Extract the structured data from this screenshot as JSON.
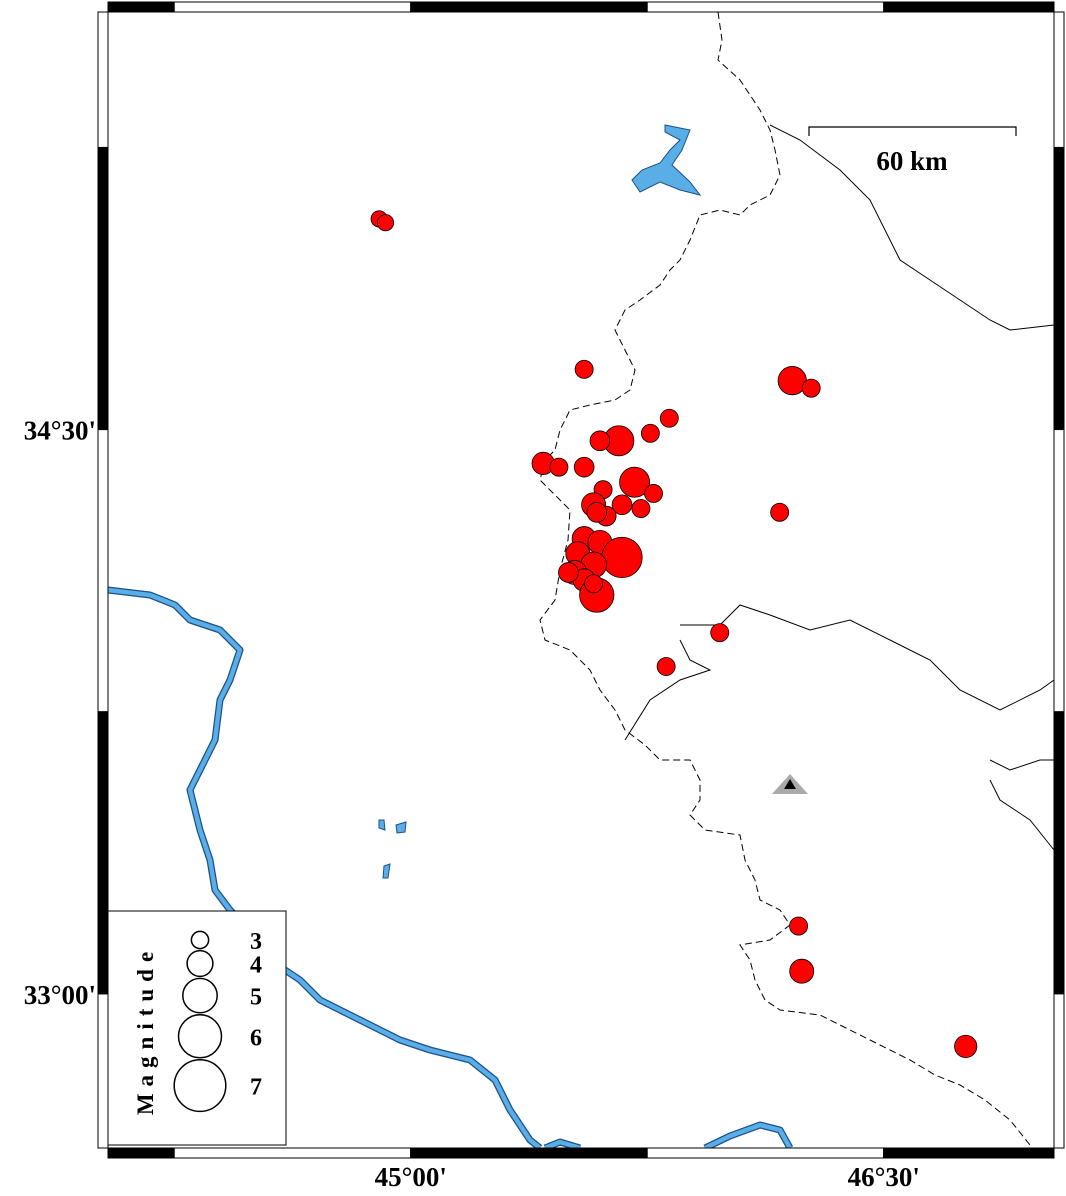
{
  "map": {
    "lon_range": [
      44.04,
      47.04
    ],
    "lat_range": [
      32.59,
      35.61
    ],
    "xticks": [
      {
        "value": 45,
        "label": "45°00'"
      },
      {
        "value": 46.5,
        "label": "46°30'"
      }
    ],
    "yticks": [
      {
        "value": 34.5,
        "label": "34°30'"
      },
      {
        "value": 33,
        "label": "33°00'"
      }
    ],
    "scale_bar": {
      "label": "60 km"
    },
    "color": "#ff0000",
    "events": {
      "lon": [
        44.9,
        44.92,
        45.55,
        46.21,
        46.27,
        45.82,
        45.76,
        45.66,
        45.6,
        45.42,
        45.47,
        45.55,
        45.71,
        45.77,
        45.61,
        45.58,
        45.67,
        45.73,
        45.62,
        45.59,
        46.17,
        45.55,
        45.6,
        45.67,
        45.53,
        45.58,
        45.52,
        45.55,
        45.59,
        45.58,
        45.5,
        45.98,
        45.81,
        46.23,
        46.24,
        46.76
      ],
      "lat": [
        35.06,
        35.05,
        34.66,
        34.63,
        34.61,
        34.53,
        34.49,
        34.47,
        34.47,
        34.41,
        34.4,
        34.4,
        34.36,
        34.33,
        34.34,
        34.3,
        34.3,
        34.29,
        34.27,
        34.28,
        34.28,
        34.21,
        34.2,
        34.16,
        34.17,
        34.14,
        34.12,
        34.1,
        34.06,
        34.09,
        34.12,
        33.96,
        33.87,
        33.18,
        33.06,
        32.86
      ],
      "mag": [
        2.9,
        2.9,
        3.1,
        4.3,
        3.1,
        3.1,
        3.1,
        4.5,
        3.3,
        3.6,
        3.1,
        3.3,
        4.5,
        3.1,
        3.1,
        3.8,
        3.3,
        3.1,
        3.3,
        3.3,
        3.1,
        3.8,
        3.8,
        5.7,
        3.8,
        4.0,
        3.8,
        3.6,
        5.0,
        3.1,
        3.3,
        3.1,
        3.1,
        3.1,
        3.8,
        3.6
      ]
    },
    "legend": {
      "title": "Magnitude",
      "magnitudes": [
        3,
        4,
        5,
        6,
        7
      ]
    }
  }
}
